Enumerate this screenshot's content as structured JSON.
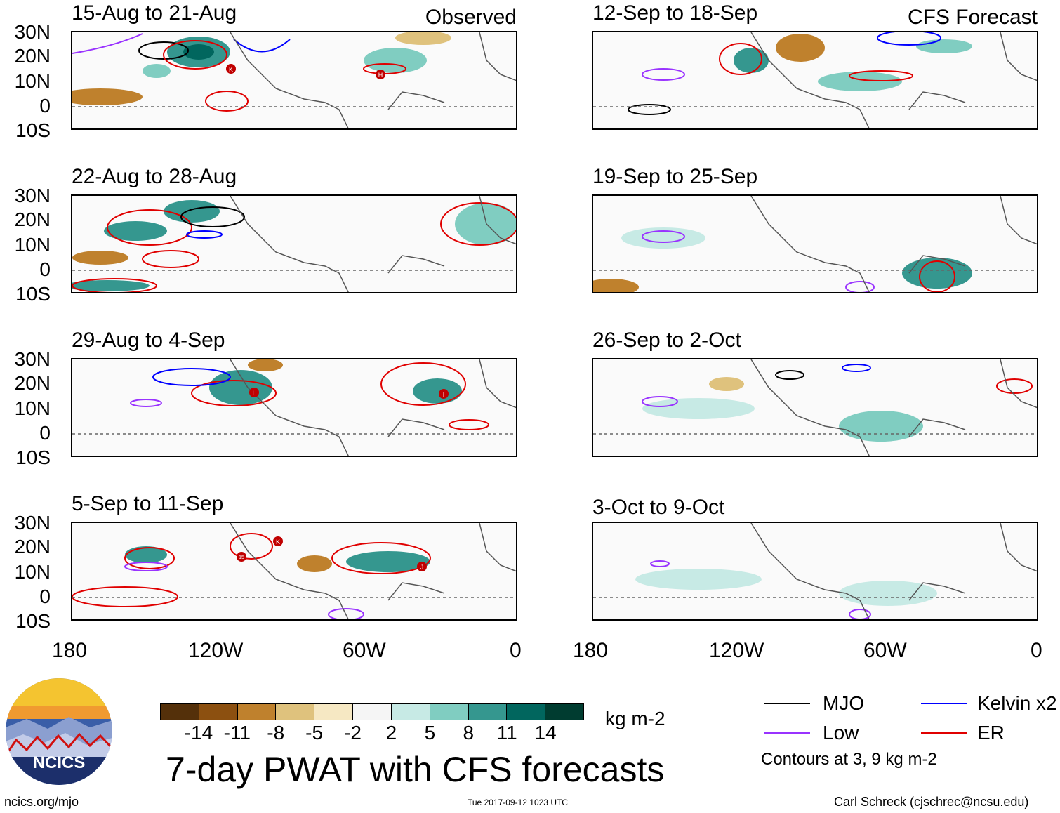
{
  "panels": {
    "left": [
      {
        "title": "15-Aug to 21-Aug",
        "tag": "Observed"
      },
      {
        "title": "22-Aug to 28-Aug"
      },
      {
        "title": "29-Aug to 4-Sep"
      },
      {
        "title": "5-Sep to 11-Sep"
      }
    ],
    "right": [
      {
        "title": "12-Sep to 18-Sep",
        "tag": "CFS Forecast"
      },
      {
        "title": "19-Sep to 25-Sep"
      },
      {
        "title": "26-Sep to 2-Oct"
      },
      {
        "title": "3-Oct to 9-Oct"
      }
    ]
  },
  "lat_labels": [
    "30N",
    "20N",
    "10N",
    "0",
    "10S"
  ],
  "lon_labels": [
    "180",
    "120W",
    "60W",
    "0"
  ],
  "storm_labels": {
    "p1": [
      "K",
      "H"
    ],
    "p3": [
      "L",
      "I"
    ],
    "p4": [
      "15",
      "K",
      "J"
    ]
  },
  "colorbar": {
    "ticks": [
      "-14",
      "-11",
      "-8",
      "-5",
      "-2",
      "2",
      "5",
      "8",
      "11",
      "14"
    ],
    "colors": [
      "#54300a",
      "#8c5010",
      "#bf812d",
      "#dfc27d",
      "#f6e8c3",
      "#f5f5f5",
      "#c7eae5",
      "#80cdc1",
      "#35978f",
      "#01665e",
      "#003c30"
    ],
    "units": "kg m-2"
  },
  "main_title": "7-day PWAT with CFS forecasts",
  "legend": {
    "mjo": {
      "label": "MJO",
      "color": "#000000"
    },
    "kelvin": {
      "label": "Kelvin x2",
      "color": "#0000ff"
    },
    "low": {
      "label": "Low",
      "color": "#9933ff"
    },
    "er": {
      "label": "ER",
      "color": "#e00000"
    },
    "note": "Contours at 3, 9 kg m-2"
  },
  "logo": {
    "text": "NCICS"
  },
  "footer": {
    "site": "ncics.org/mjo",
    "timestamp": "Tue 2017-09-12 1023 UTC",
    "author": "Carl Schreck (cjschrec@ncsu.edu)"
  }
}
